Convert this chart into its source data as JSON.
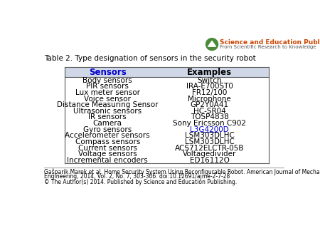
{
  "title": "Table 2. Type designation of sensors in the security robot",
  "header": [
    "Sensors",
    "Examples"
  ],
  "rows": [
    [
      "Body sensors",
      "Switch"
    ],
    [
      "PIR sensors",
      "IRA-E700ST0"
    ],
    [
      "Lux meter sensor",
      "FR12/100"
    ],
    [
      "Voice sensor",
      "Microphone"
    ],
    [
      "Distance Measuring Sensor",
      "GP2Y0A41"
    ],
    [
      "Ultrasonic sensors",
      "HC-SR04"
    ],
    [
      "IR sensors",
      "TOSP4838"
    ],
    [
      "Camera",
      "Sony Ericsson C902"
    ],
    [
      "Gyro sensors",
      "L3G4200D"
    ],
    [
      "Accelerometer sensors",
      "LSM303DLHC"
    ],
    [
      "Compass sensors",
      "LSM303DLHC"
    ],
    [
      "Current sensors",
      "ACS712ELCTR-05B"
    ],
    [
      "Voltage sensors",
      "Voltagedivider"
    ],
    [
      "Incremental encoders",
      "ED16112O"
    ]
  ],
  "gyro_row_index": 8,
  "gyro_example_color": "#0000CC",
  "header_bg_color": "#D0D8E8",
  "header_text_color_sensors": "#0000CC",
  "header_text_color_examples": "#000000",
  "table_border_color": "#555555",
  "font_size_title": 7.5,
  "font_size_header": 8.5,
  "font_size_body": 7.5,
  "footer_line1": "Gašparik Marek et al. Home Security System Using Reconfigurable Robot. American Journal of Mechanical",
  "footer_line2": "Engineering, 2014, Vol. 2, No. 7, 303-306. doi:10.12691/ajme-2-7-28",
  "footer_line3": "© The Author(s) 2014. Published by Science and Education Publishing.",
  "publisher_name": "Science and Education Publishing",
  "publisher_sub": "From Scientific Research to Knowledge",
  "logo_circle_color": "#4a8a3a",
  "logo_mountain_color": "#ffffff",
  "publisher_name_color": "#CC4400",
  "publisher_sub_color": "#555555"
}
